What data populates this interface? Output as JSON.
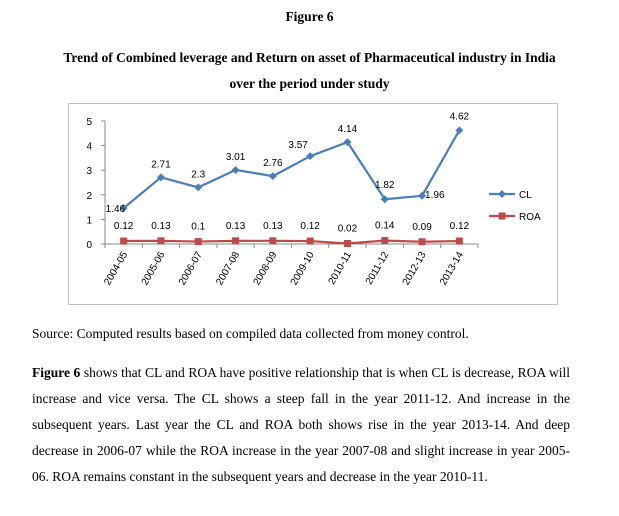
{
  "figure": {
    "label": "Figure 6",
    "caption_line1": "Trend of Combined leverage and Return on asset of Pharmaceutical industry in India",
    "caption_line2": "over the period under study"
  },
  "chart_data": {
    "type": "line",
    "categories": [
      "2004-05",
      "2005-06",
      "2006-07",
      "2007-08",
      "2008-09",
      "2009-10",
      "2010-11",
      "2011-12",
      "2012-13",
      "2013-14"
    ],
    "series": [
      {
        "name": "CL",
        "values": [
          1.46,
          2.71,
          2.3,
          3.01,
          2.76,
          3.57,
          4.14,
          1.82,
          1.96,
          4.62
        ],
        "color": "#4a7ebb",
        "marker": "diamond"
      },
      {
        "name": "ROA",
        "values": [
          0.12,
          0.13,
          0.1,
          0.13,
          0.13,
          0.12,
          0.02,
          0.14,
          0.09,
          0.12
        ],
        "color": "#be4b48",
        "marker": "square"
      }
    ],
    "yticks": [
      "0",
      "1",
      "2",
      "3",
      "4",
      "5"
    ],
    "ylim": [
      0,
      5
    ],
    "grid": false,
    "legend": "right"
  },
  "source_text": "Source: Computed results based on compiled data collected from money control.",
  "paragraph": {
    "lead": "Figure 6",
    "body": " shows that CL and ROA have positive relationship that is when CL is decrease, ROA will increase and vice versa. The CL shows a steep fall in the year 2011-12. And increase in the subsequent years. Last year the CL and ROA both shows rise in the year 2013-14. And deep decrease in 2006-07 while the ROA increase in the year 2007-08 and slight increase in year 2005-06. ROA remains constant in the subsequent years and decrease in the year 2010-11."
  }
}
